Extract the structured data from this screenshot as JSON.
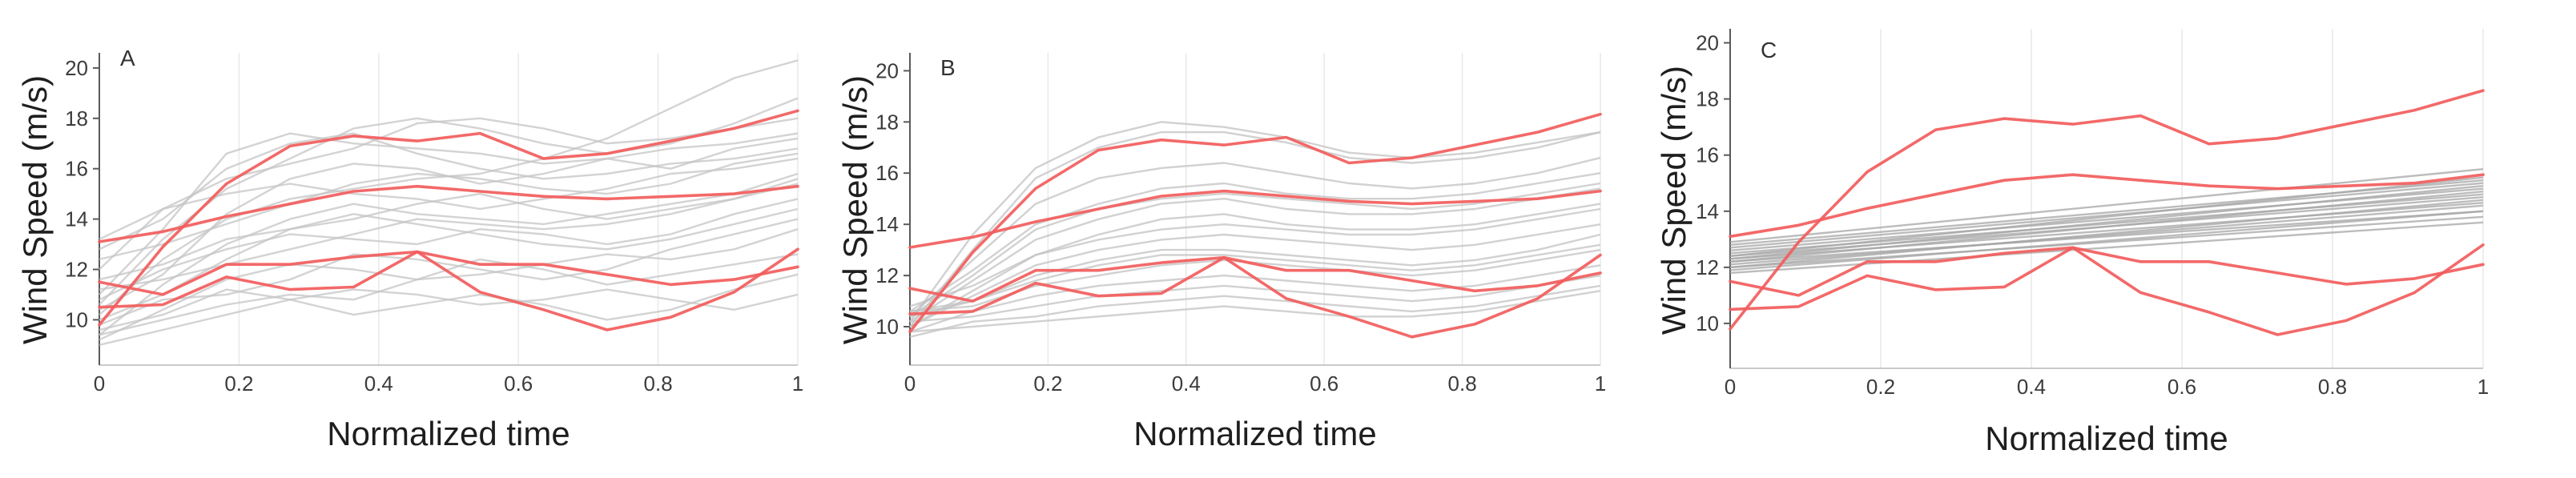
{
  "chart_data": [
    {
      "type": "line",
      "panel_label": "A",
      "xlabel": "Normalized time",
      "ylabel": "Wind Speed (m/s)",
      "xticks": [
        "0",
        "0.2",
        "0.4",
        "0.6",
        "0.8",
        "1"
      ],
      "xtick_values": [
        0,
        0.2,
        0.4,
        0.6,
        0.8,
        1
      ],
      "yticks": [
        "10",
        "12",
        "14",
        "16",
        "18",
        "20"
      ],
      "ytick_values": [
        10,
        12,
        14,
        16,
        18,
        20
      ],
      "xlim": [
        0,
        1
      ],
      "ylim": [
        8.2,
        20.6
      ],
      "grid": "vertical",
      "highlight_color": "#f25c5c",
      "background_color": "#c4c4c4",
      "x": [
        0,
        0.091,
        0.182,
        0.273,
        0.364,
        0.455,
        0.545,
        0.636,
        0.727,
        0.818,
        0.909,
        1
      ],
      "highlighted": [
        [
          9.8,
          12.9,
          15.4,
          16.9,
          17.3,
          17.1,
          17.4,
          16.4,
          16.6,
          17.1,
          17.6,
          18.3
        ],
        [
          13.1,
          13.5,
          14.1,
          14.6,
          15.1,
          15.3,
          15.1,
          14.9,
          14.8,
          14.9,
          15.0,
          15.3
        ],
        [
          11.5,
          11.0,
          12.2,
          12.2,
          12.5,
          12.7,
          12.2,
          12.2,
          11.8,
          11.4,
          11.6,
          12.1
        ],
        [
          10.5,
          10.6,
          11.7,
          11.2,
          11.3,
          12.7,
          11.1,
          10.4,
          9.6,
          10.1,
          11.1,
          12.8
        ]
      ],
      "background_x": [
        0,
        0.091,
        0.182,
        0.273,
        0.364,
        0.455,
        0.545,
        0.636,
        0.727,
        0.818,
        0.909,
        1
      ],
      "background": [
        [
          10.2,
          12.4,
          14.0,
          14.8,
          15.2,
          15.6,
          15.8,
          16.4,
          17.2,
          18.4,
          19.6,
          20.3
        ],
        [
          11.0,
          13.6,
          16.6,
          17.4,
          17.0,
          16.8,
          16.6,
          16.2,
          16.4,
          16.8,
          17.0,
          17.4
        ],
        [
          12.0,
          14.4,
          15.6,
          16.2,
          16.8,
          17.8,
          18.0,
          17.6,
          17.0,
          17.2,
          17.6,
          18.0
        ],
        [
          9.4,
          11.4,
          13.0,
          14.0,
          14.6,
          14.2,
          14.0,
          13.8,
          14.2,
          14.6,
          15.0,
          15.8
        ],
        [
          10.8,
          12.0,
          12.8,
          13.4,
          13.2,
          13.0,
          13.6,
          13.4,
          13.0,
          13.4,
          14.2,
          14.8
        ],
        [
          12.4,
          13.0,
          13.8,
          14.6,
          15.4,
          15.8,
          15.6,
          15.2,
          15.0,
          15.4,
          16.2,
          16.6
        ],
        [
          9.2,
          10.4,
          11.6,
          12.2,
          12.0,
          11.6,
          11.8,
          12.2,
          12.6,
          12.4,
          12.8,
          13.6
        ],
        [
          10.0,
          11.0,
          12.4,
          13.6,
          14.2,
          13.8,
          13.4,
          13.0,
          12.8,
          13.2,
          13.8,
          14.4
        ],
        [
          11.6,
          12.2,
          13.2,
          13.6,
          14.0,
          14.6,
          15.0,
          14.4,
          14.0,
          14.4,
          14.8,
          15.4
        ],
        [
          9.0,
          9.6,
          10.2,
          10.8,
          11.2,
          11.0,
          10.6,
          10.8,
          11.2,
          10.8,
          10.4,
          11.0
        ],
        [
          10.4,
          11.8,
          14.2,
          15.6,
          16.2,
          16.0,
          15.4,
          15.8,
          16.4,
          16.0,
          16.8,
          17.2
        ],
        [
          13.2,
          14.4,
          15.0,
          15.4,
          15.0,
          14.8,
          14.4,
          14.8,
          15.2,
          15.8,
          16.0,
          16.4
        ],
        [
          9.8,
          10.8,
          11.0,
          11.6,
          12.6,
          12.4,
          12.0,
          11.6,
          12.0,
          12.8,
          13.4,
          14.0
        ],
        [
          11.2,
          11.6,
          12.2,
          12.8,
          13.4,
          14.0,
          13.8,
          13.6,
          13.8,
          14.2,
          14.8,
          15.6
        ],
        [
          10.6,
          13.2,
          15.2,
          16.4,
          17.6,
          18.0,
          17.6,
          17.0,
          16.6,
          17.0,
          17.8,
          18.8
        ],
        [
          9.4,
          10.0,
          10.6,
          11.0,
          10.8,
          11.6,
          12.4,
          12.0,
          11.4,
          11.8,
          12.2,
          12.6
        ],
        [
          12.8,
          14.0,
          16.0,
          17.0,
          17.4,
          16.6,
          16.0,
          15.6,
          15.8,
          16.2,
          16.4,
          16.8
        ],
        [
          9.6,
          10.2,
          11.2,
          10.8,
          10.2,
          10.6,
          11.0,
          10.6,
          10.0,
          10.4,
          11.2,
          11.8
        ]
      ]
    },
    {
      "type": "line",
      "panel_label": "B",
      "xlabel": "Normalized time",
      "ylabel": "Wind Speed (m/s)",
      "xticks": [
        "0",
        "0.2",
        "0.4",
        "0.6",
        "0.8",
        "1"
      ],
      "xtick_values": [
        0,
        0.2,
        0.4,
        0.6,
        0.8,
        1
      ],
      "yticks": [
        "10",
        "12",
        "14",
        "16",
        "18",
        "20"
      ],
      "ytick_values": [
        10,
        12,
        14,
        16,
        18,
        20
      ],
      "xlim": [
        0,
        1
      ],
      "ylim": [
        8.5,
        20.7
      ],
      "grid": "vertical",
      "highlight_color": "#f25c5c",
      "background_color": "#c2c2c2",
      "x": [
        0,
        0.091,
        0.182,
        0.273,
        0.364,
        0.455,
        0.545,
        0.636,
        0.727,
        0.818,
        0.909,
        1
      ],
      "highlighted": [
        [
          9.8,
          12.9,
          15.4,
          16.9,
          17.3,
          17.1,
          17.4,
          16.4,
          16.6,
          17.1,
          17.6,
          18.3
        ],
        [
          13.1,
          13.5,
          14.1,
          14.6,
          15.1,
          15.3,
          15.1,
          14.9,
          14.8,
          14.9,
          15.0,
          15.3
        ],
        [
          11.5,
          11.0,
          12.2,
          12.2,
          12.5,
          12.7,
          12.2,
          12.2,
          11.8,
          11.4,
          11.6,
          12.1
        ],
        [
          10.5,
          10.6,
          11.7,
          11.2,
          11.3,
          12.7,
          11.1,
          10.4,
          9.6,
          10.1,
          11.1,
          12.8
        ]
      ],
      "background_x": [
        0,
        0.091,
        0.182,
        0.273,
        0.364,
        0.455,
        0.545,
        0.636,
        0.727,
        0.818,
        0.909,
        1
      ],
      "background": [
        [
          10.0,
          13.0,
          15.8,
          17.0,
          17.6,
          17.6,
          17.2,
          16.6,
          16.4,
          16.6,
          17.0,
          17.6
        ],
        [
          10.4,
          12.6,
          14.8,
          15.8,
          16.2,
          16.4,
          16.0,
          15.6,
          15.4,
          15.6,
          16.0,
          16.6
        ],
        [
          10.6,
          12.2,
          14.0,
          14.8,
          15.4,
          15.6,
          15.2,
          15.0,
          15.0,
          15.2,
          15.6,
          16.0
        ],
        [
          10.2,
          11.8,
          13.4,
          14.2,
          14.8,
          15.0,
          14.6,
          14.4,
          14.4,
          14.6,
          15.0,
          15.4
        ],
        [
          10.8,
          11.6,
          12.8,
          13.6,
          14.2,
          14.4,
          14.0,
          13.8,
          13.8,
          14.0,
          14.4,
          14.8
        ],
        [
          10.0,
          11.2,
          12.4,
          13.0,
          13.4,
          13.6,
          13.4,
          13.2,
          13.0,
          13.2,
          13.6,
          14.0
        ],
        [
          10.4,
          11.0,
          12.0,
          12.6,
          13.0,
          13.0,
          12.8,
          12.6,
          12.4,
          12.6,
          13.0,
          13.6
        ],
        [
          10.6,
          10.8,
          11.6,
          12.0,
          12.4,
          12.6,
          12.4,
          12.2,
          12.0,
          12.2,
          12.6,
          13.0
        ],
        [
          9.8,
          10.6,
          11.2,
          11.6,
          11.8,
          12.0,
          11.8,
          11.6,
          11.4,
          11.6,
          12.0,
          12.4
        ],
        [
          10.2,
          10.4,
          10.8,
          11.2,
          11.4,
          11.6,
          11.4,
          11.2,
          11.0,
          11.2,
          11.6,
          12.0
        ],
        [
          9.6,
          10.2,
          10.4,
          10.8,
          11.0,
          11.2,
          11.0,
          10.8,
          10.6,
          10.8,
          11.2,
          11.6
        ],
        [
          10.4,
          12.0,
          13.8,
          14.6,
          15.0,
          15.2,
          15.0,
          14.8,
          14.6,
          14.8,
          15.2,
          15.6
        ],
        [
          10.0,
          11.4,
          12.8,
          13.4,
          13.8,
          14.0,
          13.8,
          13.6,
          13.6,
          13.8,
          14.2,
          14.6
        ],
        [
          10.6,
          11.0,
          11.8,
          12.4,
          12.8,
          12.8,
          12.6,
          12.4,
          12.2,
          12.4,
          12.8,
          13.2
        ],
        [
          10.2,
          13.6,
          16.2,
          17.4,
          18.0,
          17.8,
          17.4,
          16.8,
          16.6,
          16.8,
          17.2,
          17.6
        ],
        [
          9.8,
          10.0,
          10.2,
          10.4,
          10.6,
          10.8,
          10.6,
          10.4,
          10.4,
          10.6,
          11.0,
          11.4
        ]
      ]
    },
    {
      "type": "line",
      "panel_label": "C",
      "xlabel": "Normalized time",
      "ylabel": "Wind Speed (m/s)",
      "xticks": [
        "0",
        "0.2",
        "0.4",
        "0.6",
        "0.8",
        "1"
      ],
      "xtick_values": [
        0,
        0.2,
        0.4,
        0.6,
        0.8,
        1
      ],
      "yticks": [
        "10",
        "12",
        "14",
        "16",
        "18",
        "20"
      ],
      "ytick_values": [
        10,
        12,
        14,
        16,
        18,
        20
      ],
      "xlim": [
        0,
        1
      ],
      "ylim": [
        8.4,
        20.5
      ],
      "grid": "vertical",
      "highlight_color": "#f25c5c",
      "background_color": "#a6a6a6",
      "x": [
        0,
        0.091,
        0.182,
        0.273,
        0.364,
        0.455,
        0.545,
        0.636,
        0.727,
        0.818,
        0.909,
        1
      ],
      "highlighted": [
        [
          9.8,
          12.9,
          15.4,
          16.9,
          17.3,
          17.1,
          17.4,
          16.4,
          16.6,
          17.1,
          17.6,
          18.3
        ],
        [
          13.1,
          13.5,
          14.1,
          14.6,
          15.1,
          15.3,
          15.1,
          14.9,
          14.8,
          14.9,
          15.0,
          15.3
        ],
        [
          11.5,
          11.0,
          12.2,
          12.2,
          12.5,
          12.7,
          12.2,
          12.2,
          11.8,
          11.4,
          11.6,
          12.1
        ],
        [
          10.5,
          10.6,
          11.7,
          11.2,
          11.3,
          12.7,
          11.1,
          10.4,
          9.6,
          10.1,
          11.1,
          12.8
        ]
      ],
      "background_x": [
        0,
        1
      ],
      "background": [
        [
          11.8,
          13.6
        ],
        [
          12.0,
          13.8
        ],
        [
          12.2,
          14.0
        ],
        [
          12.1,
          14.2
        ],
        [
          12.3,
          14.3
        ],
        [
          12.4,
          14.5
        ],
        [
          12.5,
          14.6
        ],
        [
          12.2,
          14.7
        ],
        [
          12.6,
          14.8
        ],
        [
          12.7,
          15.0
        ],
        [
          12.8,
          15.1
        ],
        [
          12.0,
          14.4
        ],
        [
          12.4,
          15.2
        ],
        [
          11.9,
          14.0
        ],
        [
          12.9,
          15.5
        ],
        [
          12.3,
          14.9
        ]
      ]
    }
  ]
}
